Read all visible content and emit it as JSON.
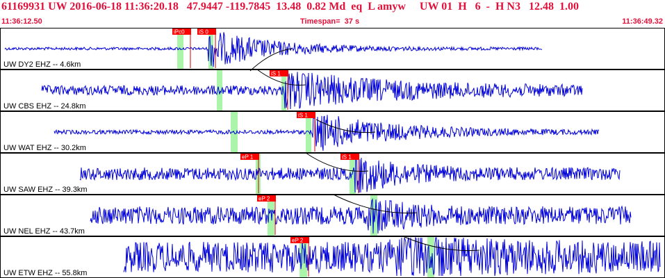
{
  "header": {
    "title": "61169931 UW 2016-06-18 11:36:20.18   47.9447 -119.7845  13.48  0.82 Md  eq  L amyw     UW 01  H   6  -  H N3   12.48  1.00",
    "start_time": "11:36:12.50",
    "timespan": "Timespan=  37 s",
    "end_time": "11:36:49.32"
  },
  "colors": {
    "text": "#e0103a",
    "trace": "#0000d8",
    "pick_bg": "#ff0000",
    "pick_line": "#d40000",
    "window_fill": "#aaf5aa",
    "panel_border": "#000000",
    "coda_curve": "#000000"
  },
  "panels": [
    {
      "label": "UW DY2 EHZ -- 4.6km",
      "picks": [
        {
          "label": "iPc0",
          "kind": "P"
        },
        {
          "label": "iS 0",
          "kind": "S"
        }
      ]
    },
    {
      "label": "UW CBS EHZ -- 24.8km",
      "picks": [
        {
          "label": "iS 1",
          "kind": "S"
        }
      ]
    },
    {
      "label": "UW WAT EHZ -- 30.2km",
      "picks": [
        {
          "label": "iS 1",
          "kind": "S"
        }
      ]
    },
    {
      "label": "UW SAW EHZ -- 39.3km",
      "picks": [
        {
          "label": "eP 1",
          "kind": "P"
        },
        {
          "label": "iS 1",
          "kind": "S"
        }
      ]
    },
    {
      "label": "UW NEL EHZ -- 43.7km",
      "picks": [
        {
          "label": "eP 2",
          "kind": "P"
        }
      ]
    },
    {
      "label": "UW ETW EHZ -- 55.8km",
      "picks": [
        {
          "label": "eP 2",
          "kind": "P"
        }
      ]
    }
  ]
}
